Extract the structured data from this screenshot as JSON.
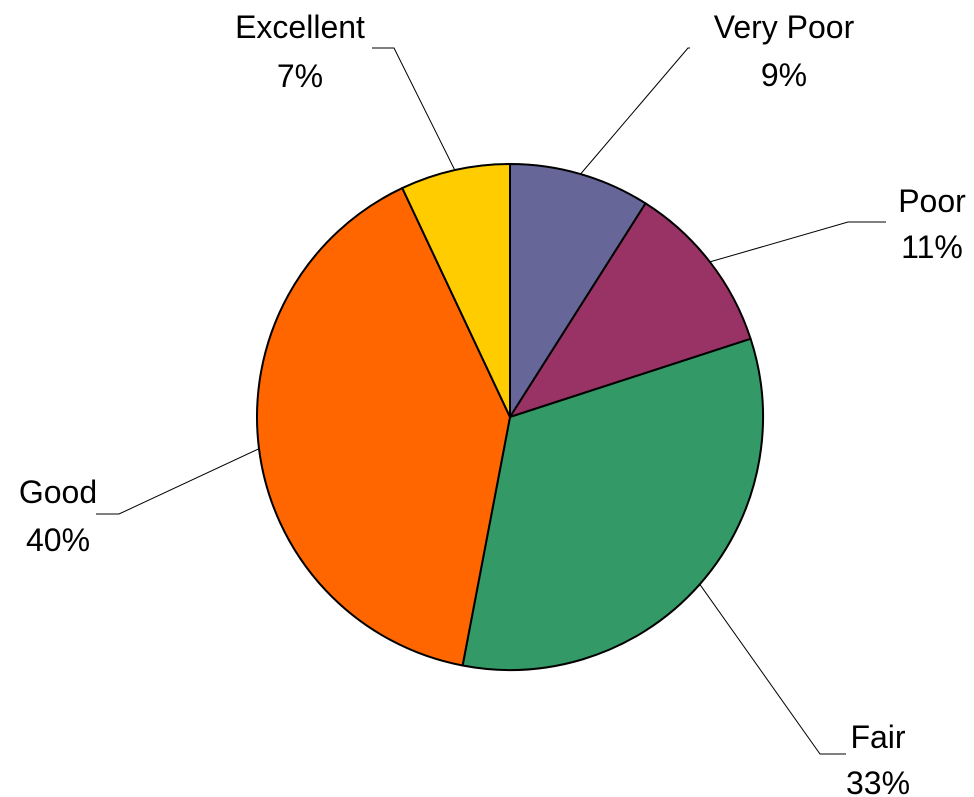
{
  "chart_data": {
    "type": "pie",
    "title": "",
    "slices": [
      {
        "label": "Very Poor",
        "value_label": "9%",
        "value": 9,
        "color": "#666699"
      },
      {
        "label": "Poor",
        "value_label": "11%",
        "value": 11,
        "color": "#993366"
      },
      {
        "label": "Fair",
        "value_label": "33%",
        "value": 33,
        "color": "#339966"
      },
      {
        "label": "Good",
        "value_label": "40%",
        "value": 40,
        "color": "#FF6600"
      },
      {
        "label": "Excellent",
        "value_label": "7%",
        "value": 7,
        "color": "#FFCC00"
      }
    ],
    "start_angle": "12 o'clock",
    "direction": "clockwise",
    "legend": "none",
    "data_labels": "outside with leader lines"
  }
}
